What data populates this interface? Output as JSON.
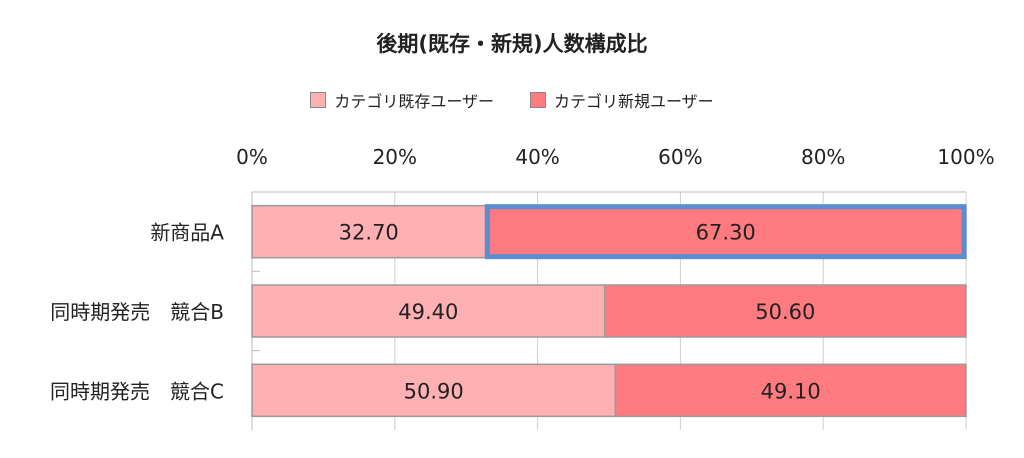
{
  "chart_data": {
    "type": "bar",
    "orientation": "horizontal",
    "stacked": "percent",
    "title": "後期(既存・新規)人数構成比",
    "categories": [
      "新商品A",
      "同時期発売　競合B",
      "同時期発売　競合C"
    ],
    "series": [
      {
        "name": "カテゴリ既存ユーザー",
        "color": "#ffb0b3",
        "values": [
          32.7,
          49.4,
          50.9
        ]
      },
      {
        "name": "カテゴリ新規ユーザー",
        "color": "#ff7b80",
        "values": [
          67.3,
          50.6,
          49.1
        ]
      }
    ],
    "value_labels": [
      [
        "32.70",
        "67.30"
      ],
      [
        "49.40",
        "50.60"
      ],
      [
        "50.90",
        "49.10"
      ]
    ],
    "x_ticks": [
      "0%",
      "20%",
      "40%",
      "60%",
      "80%",
      "100%"
    ],
    "xlim": [
      0,
      100
    ],
    "grid": true,
    "legend_position": "top",
    "x_axis_position": "top",
    "highlight": {
      "category_index": 0,
      "series_index": 1,
      "color": "#5b8ed1"
    }
  }
}
